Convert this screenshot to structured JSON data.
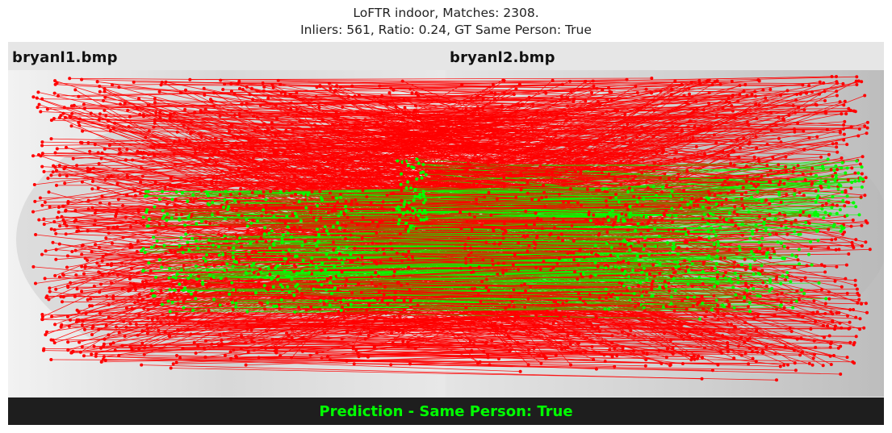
{
  "title": {
    "line1": "LoFTR indoor, Matches: 2308.",
    "line2": "Inliers: 561, Ratio: 0.24, GT Same Person: True"
  },
  "images": {
    "left_name": "bryanl1.bmp",
    "right_name": "bryanl2.bmp"
  },
  "footer": {
    "prediction": "Prediction - Same Person: True"
  },
  "colors": {
    "outlier": "#ff0000",
    "inlier": "#00ff00",
    "footer_bg": "#1e1e1e",
    "header_bg": "#e6e6e6"
  }
}
